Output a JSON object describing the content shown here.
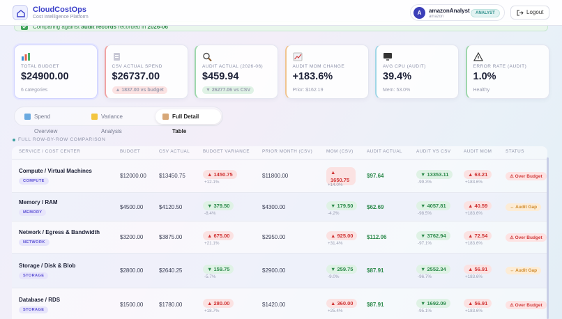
{
  "header": {
    "brand": "CloudCostOps",
    "tagline": "Cost Intelligence Platform",
    "avatar": "A",
    "user": "amazonAnalyst",
    "org": "amazon",
    "role": "ANALYST",
    "logout": "Logout"
  },
  "banner": {
    "parts": [
      "Comparing against ",
      "audit records",
      " recorded in ",
      "2026-06"
    ]
  },
  "cards": [
    {
      "label": "TOTAL BUDGET",
      "value": "$24900.00",
      "sub": "6 categories"
    },
    {
      "label": "CSV ACTUAL SPEND",
      "value": "$26737.00",
      "sub": "▲ 1837.00 vs budget"
    },
    {
      "label": "AUDIT ACTUAL (2026-06)",
      "value": "$459.94",
      "sub": "▼ 26277.06 vs CSV"
    },
    {
      "label": "AUDIT MOM CHANGE",
      "value": "+183.6%",
      "sub": "Prior: $162.19"
    },
    {
      "label": "AVG CPU (AUDIT)",
      "value": "39.4%",
      "sub": "Mem: 53.0%"
    },
    {
      "label": "ERROR RATE (AUDIT)",
      "value": "1.0%",
      "sub": "Healthy"
    }
  ],
  "tabs": [
    "Spend Overview",
    "Variance Analysis",
    "Full Detail Table"
  ],
  "active_tab": 2,
  "table": {
    "section": "FULL ROW-BY-ROW COMPARISON",
    "columns": [
      "SERVICE / COST CENTER",
      "BUDGET",
      "CSV ACTUAL",
      "BUDGET VARIANCE",
      "PRIOR MONTH (CSV)",
      "MOM (CSV)",
      "AUDIT ACTUAL",
      "AUDIT VS CSV",
      "AUDIT MOM",
      "STATUS"
    ],
    "rows": [
      {
        "service": "Compute / Virtual Machines",
        "category": "COMPUTE",
        "budget": "$12000.00",
        "csv_actual": "$13450.75",
        "budget_variance": "▲ 1450.75",
        "budget_variance_pct": "+12.1%",
        "prior_month": "$11800.00",
        "mom": "▲ 1650.75",
        "mom_pct": "+14.0%",
        "audit_actual": "$97.64",
        "audit_vs_csv": "▼ 13353.11",
        "audit_vs_csv_pct": "-99.3%",
        "audit_mom": "▲ 63.21",
        "audit_mom_pct": "+183.6%",
        "status": "⚠ Over Budget"
      },
      {
        "service": "Memory / RAM",
        "category": "MEMORY",
        "budget": "$4500.00",
        "csv_actual": "$4120.50",
        "budget_variance": "▼ 379.50",
        "budget_variance_pct": "-8.4%",
        "prior_month": "$4300.00",
        "mom": "▼ 179.50",
        "mom_pct": "-4.2%",
        "audit_actual": "$62.69",
        "audit_vs_csv": "▼ 4057.81",
        "audit_vs_csv_pct": "-98.5%",
        "audit_mom": "▲ 40.59",
        "audit_mom_pct": "+183.6%",
        "status": "↔ Audit Gap"
      },
      {
        "service": "Network / Egress & Bandwidth",
        "category": "NETWORK",
        "budget": "$3200.00",
        "csv_actual": "$3875.00",
        "budget_variance": "▲ 675.00",
        "budget_variance_pct": "+21.1%",
        "prior_month": "$2950.00",
        "mom": "▲ 925.00",
        "mom_pct": "+31.4%",
        "audit_actual": "$112.06",
        "audit_vs_csv": "▼ 3762.94",
        "audit_vs_csv_pct": "-97.1%",
        "audit_mom": "▲ 72.54",
        "audit_mom_pct": "+183.6%",
        "status": "⚠ Over Budget"
      },
      {
        "service": "Storage / Disk & Blob",
        "category": "STORAGE",
        "budget": "$2800.00",
        "csv_actual": "$2640.25",
        "budget_variance": "▼ 159.75",
        "budget_variance_pct": "-5.7%",
        "prior_month": "$2900.00",
        "mom": "▼ 259.75",
        "mom_pct": "-9.0%",
        "audit_actual": "$87.91",
        "audit_vs_csv": "▼ 2552.34",
        "audit_vs_csv_pct": "-96.7%",
        "audit_mom": "▲ 56.91",
        "audit_mom_pct": "+183.6%",
        "status": "↔ Audit Gap"
      },
      {
        "service": "Database / RDS",
        "category": "STORAGE",
        "budget": "$1500.00",
        "csv_actual": "$1780.00",
        "budget_variance": "▲ 280.00",
        "budget_variance_pct": "+18.7%",
        "prior_month": "$1420.00",
        "mom": "▲ 360.00",
        "mom_pct": "+25.4%",
        "audit_actual": "$87.91",
        "audit_vs_csv": "▼ 1692.09",
        "audit_vs_csv_pct": "-95.1%",
        "audit_mom": "▲ 56.91",
        "audit_mom_pct": "+183.6%",
        "status": "⚠ Over Budget"
      }
    ]
  }
}
